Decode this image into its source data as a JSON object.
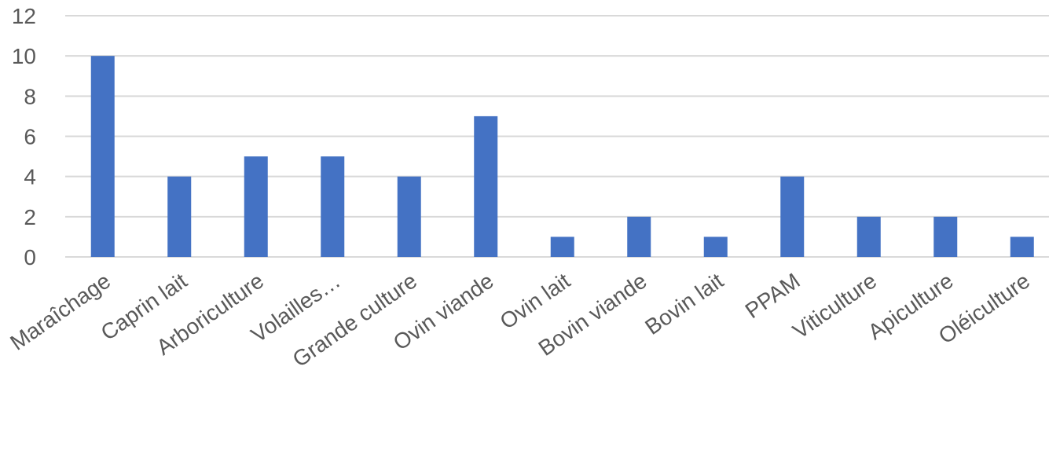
{
  "chart_data": {
    "type": "bar",
    "categories": [
      "Maraîchage",
      "Caprin lait",
      "Arboriculture",
      "Volailles…",
      "Grande culture",
      "Ovin viande",
      "Ovin lait",
      "Bovin viande",
      "Bovin lait",
      "PPAM",
      "Viticulture",
      "Apiculture",
      "Oléiculture"
    ],
    "values": [
      10,
      4,
      5,
      5,
      4,
      7,
      1,
      2,
      1,
      4,
      2,
      2,
      1
    ],
    "ylim": [
      0,
      12
    ],
    "yticks": [
      0,
      2,
      4,
      6,
      8,
      10,
      12
    ],
    "grid": true,
    "bar_color": "#4472c4"
  }
}
